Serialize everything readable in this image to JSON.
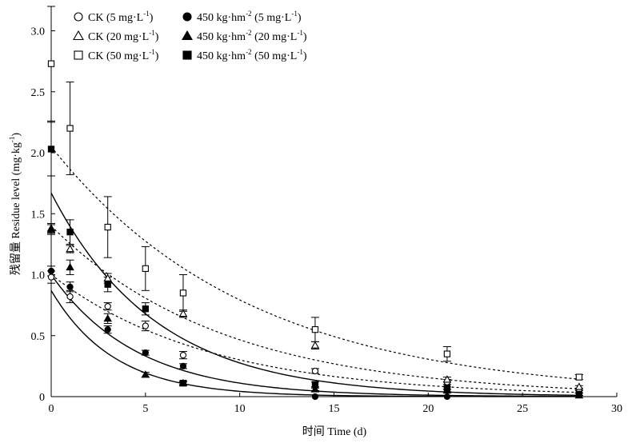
{
  "chart_data": {
    "type": "scatter",
    "xlabel": "时间 Time (d)",
    "ylabel": "残留量 Residue level (mg·kg",
    "ylabel_sup": "-1",
    "ylabel_tail": ")",
    "xlim": [
      0,
      30
    ],
    "ylim": [
      0,
      3.2
    ],
    "xticks": [
      0,
      5,
      10,
      15,
      20,
      25,
      30
    ],
    "yticks": [
      0,
      0.5,
      1.0,
      1.5,
      2.0,
      2.5,
      3.0
    ],
    "xtick_labels": [
      "0",
      "5",
      "10",
      "15",
      "20",
      "25",
      "30"
    ],
    "ytick_labels": [
      "0",
      "0.5",
      "1.0",
      "1.5",
      "2.0",
      "2.5",
      "3.0"
    ],
    "grid": false,
    "legend_position": "top-left",
    "series": [
      {
        "label_main": "CK (5 mg·L",
        "label_sup": "-1",
        "label_tail": ")",
        "marker": "circle",
        "filled": false,
        "curve_style": "dashed",
        "curve": {
          "c0": 1.0,
          "k": 0.12
        },
        "points": [
          {
            "x": 0,
            "y": 0.98,
            "err": 0.05
          },
          {
            "x": 1,
            "y": 0.82,
            "err": 0.05
          },
          {
            "x": 3,
            "y": 0.74,
            "err": 0.03
          },
          {
            "x": 5,
            "y": 0.58,
            "err": 0.04
          },
          {
            "x": 7,
            "y": 0.34,
            "err": 0.03
          },
          {
            "x": 14,
            "y": 0.21,
            "err": 0.02
          },
          {
            "x": 21,
            "y": 0.12,
            "err": 0.02
          },
          {
            "x": 28,
            "y": 0.04,
            "err": 0.01
          }
        ]
      },
      {
        "label_main": "CK (20 mg·L",
        "label_sup": "-1",
        "label_tail": ")",
        "marker": "triangle",
        "filled": false,
        "curve_style": "dashed",
        "curve": {
          "c0": 1.4,
          "k": 0.11
        },
        "points": [
          {
            "x": 0,
            "y": 1.38,
            "err": 0.04
          },
          {
            "x": 1,
            "y": 1.21,
            "err": 0.03
          },
          {
            "x": 3,
            "y": 0.97,
            "err": 0.04
          },
          {
            "x": 7,
            "y": 0.68,
            "err": 0.03
          },
          {
            "x": 14,
            "y": 0.42,
            "err": 0.03
          },
          {
            "x": 21,
            "y": 0.14,
            "err": 0.02
          },
          {
            "x": 28,
            "y": 0.08,
            "err": 0.01
          }
        ]
      },
      {
        "label_main": "CK (50 mg·L",
        "label_sup": "-1",
        "label_tail": ")",
        "marker": "square",
        "filled": false,
        "curve_style": "dashed",
        "curve": {
          "c0": 2.05,
          "k": 0.095
        },
        "points": [
          {
            "x": 0,
            "y": 2.73,
            "err": 0.47
          },
          {
            "x": 1,
            "y": 2.2,
            "err": 0.38
          },
          {
            "x": 3,
            "y": 1.39,
            "err": 0.25
          },
          {
            "x": 5,
            "y": 1.05,
            "err": 0.18
          },
          {
            "x": 7,
            "y": 0.85,
            "err": 0.15
          },
          {
            "x": 14,
            "y": 0.55,
            "err": 0.1
          },
          {
            "x": 21,
            "y": 0.35,
            "err": 0.06
          },
          {
            "x": 28,
            "y": 0.16,
            "err": 0.02
          }
        ]
      },
      {
        "label_main": "450 kg·hm",
        "label_sup": "-2",
        "label_tail": " (5 mg·L",
        "label_sup2": "-1",
        "label_tail2": ")",
        "marker": "circle",
        "filled": true,
        "curve_style": "solid",
        "curve": {
          "c0": 0.87,
          "k": 0.3
        },
        "points": [
          {
            "x": 0,
            "y": 1.03,
            "err": 0.04
          },
          {
            "x": 1,
            "y": 0.9,
            "err": 0.04
          },
          {
            "x": 3,
            "y": 0.55,
            "err": 0.03
          },
          {
            "x": 5,
            "y": 0.36,
            "err": 0.02
          },
          {
            "x": 7,
            "y": 0.25,
            "err": 0.02
          },
          {
            "x": 14,
            "y": 0.0,
            "err": 0.0
          },
          {
            "x": 21,
            "y": 0.0,
            "err": 0.0
          },
          {
            "x": 28,
            "y": 0.02,
            "err": 0.01
          }
        ]
      },
      {
        "label_main": "450 kg·hm",
        "label_sup": "-2",
        "label_tail": " (20 mg·L",
        "label_sup2": "-1",
        "label_tail2": ")",
        "marker": "triangle",
        "filled": true,
        "curve_style": "solid",
        "curve": {
          "c0": 1.0,
          "k": 0.22
        },
        "points": [
          {
            "x": 0,
            "y": 1.37,
            "err": 0.04
          },
          {
            "x": 1,
            "y": 1.06,
            "err": 0.06
          },
          {
            "x": 3,
            "y": 0.64,
            "err": 0.04
          },
          {
            "x": 5,
            "y": 0.18,
            "err": 0.02
          },
          {
            "x": 7,
            "y": 0.11,
            "err": 0.01
          },
          {
            "x": 14,
            "y": 0.06,
            "err": 0.01
          },
          {
            "x": 21,
            "y": 0.05,
            "err": 0.01
          },
          {
            "x": 28,
            "y": 0.01,
            "err": 0.0
          }
        ]
      },
      {
        "label_main": "450 kg·hm",
        "label_sup": "-2",
        "label_tail": " (50 mg·L",
        "label_sup2": "-1",
        "label_tail2": ")",
        "marker": "square",
        "filled": true,
        "curve_style": "solid",
        "curve": {
          "c0": 1.67,
          "k": 0.18
        },
        "points": [
          {
            "x": 0,
            "y": 2.03,
            "err": 0.22
          },
          {
            "x": 1,
            "y": 1.35,
            "err": 0.1
          },
          {
            "x": 3,
            "y": 0.92,
            "err": 0.06
          },
          {
            "x": 5,
            "y": 0.72,
            "err": 0.05
          },
          {
            "x": 7,
            "y": 0.11,
            "err": 0.02
          },
          {
            "x": 14,
            "y": 0.1,
            "err": 0.02
          },
          {
            "x": 21,
            "y": 0.07,
            "err": 0.01
          },
          {
            "x": 28,
            "y": 0.02,
            "err": 0.01
          }
        ]
      }
    ]
  }
}
